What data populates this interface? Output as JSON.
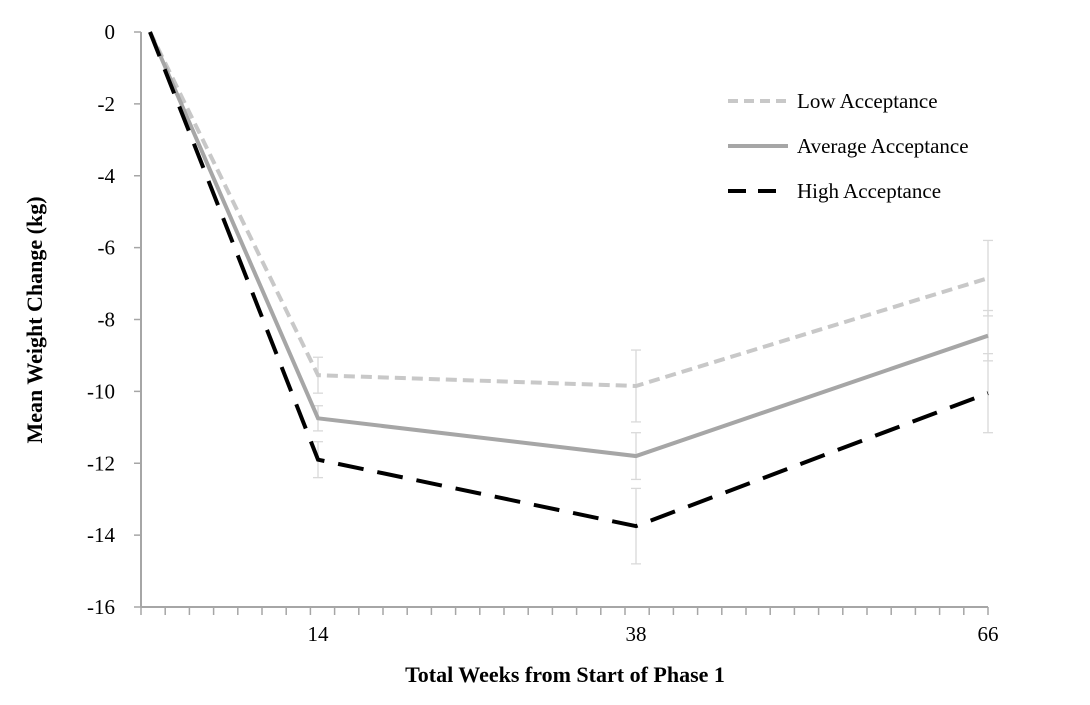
{
  "chart_data": {
    "type": "line",
    "title": "",
    "xlabel": "Total Weeks from Start of Phase 1",
    "ylabel": "Mean Weight Change (kg)",
    "x": [
      0,
      14,
      38,
      66
    ],
    "x_tick_labels": [
      "14",
      "38",
      "66"
    ],
    "ylim": [
      -16,
      0
    ],
    "y_ticks": [
      0,
      -2,
      -4,
      -6,
      -8,
      -10,
      -12,
      -14,
      -16
    ],
    "grid": false,
    "legend_position": "top-right",
    "series": [
      {
        "name": "Low Acceptance",
        "style": "short-dash",
        "color": "#c8c8c8",
        "values": [
          0,
          -9.55,
          -9.85,
          -6.85
        ],
        "error": [
          0,
          0.5,
          1.0,
          1.05
        ]
      },
      {
        "name": "Average Acceptance",
        "style": "solid",
        "color": "#a6a6a6",
        "values": [
          0,
          -10.75,
          -11.8,
          -8.45
        ],
        "error": [
          0,
          0.35,
          0.65,
          0.7
        ]
      },
      {
        "name": "High Acceptance",
        "style": "long-dash",
        "color": "#000000",
        "values": [
          0,
          -11.9,
          -13.75,
          -10.05
        ],
        "error": [
          0,
          0.5,
          1.05,
          1.1
        ]
      }
    ]
  }
}
